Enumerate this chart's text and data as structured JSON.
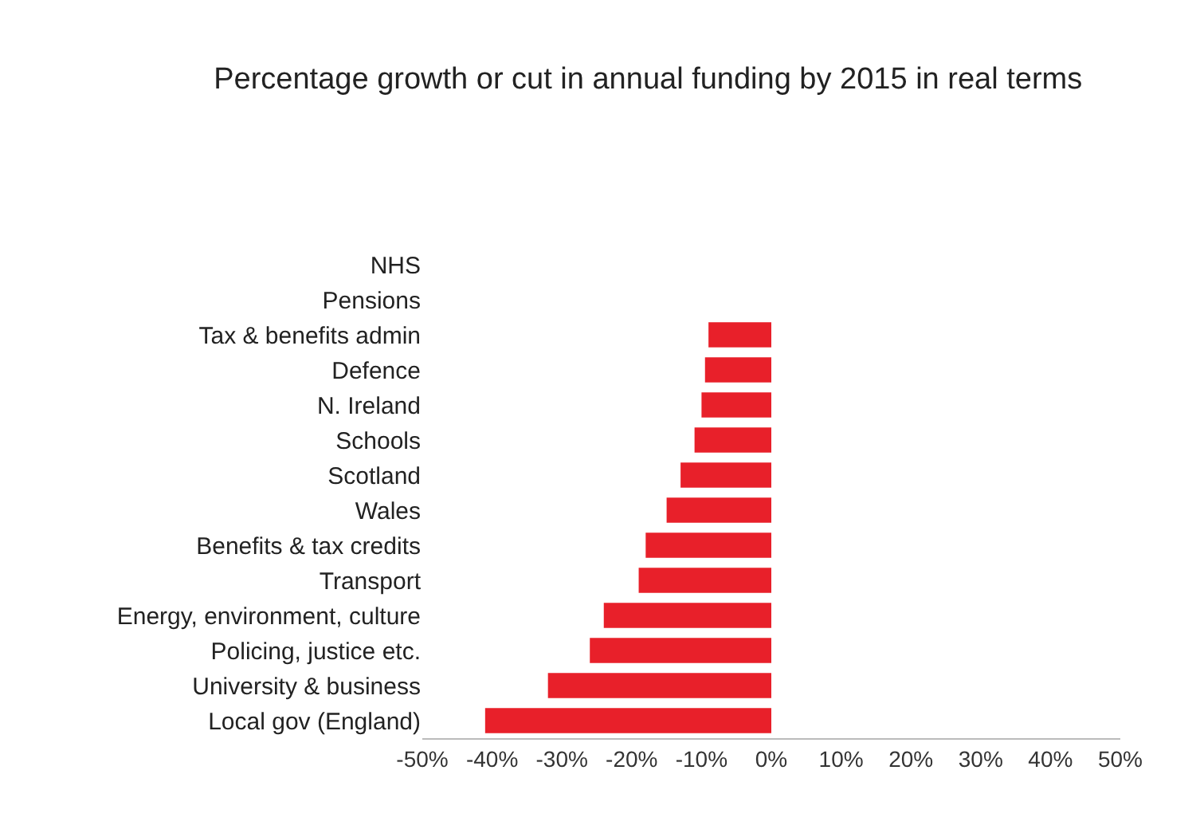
{
  "chart_data": {
    "type": "bar",
    "orientation": "horizontal",
    "title": "Percentage growth or cut in annual funding by 2015 in real terms",
    "categories": [
      "NHS",
      "Pensions",
      "Tax & benefits admin",
      "Defence",
      "N. Ireland",
      "Schools",
      "Scotland",
      "Wales",
      "Benefits & tax credits",
      "Transport",
      "Energy, environment, culture",
      "Policing, justice etc.",
      "University & business",
      "Local gov (England)"
    ],
    "values": [
      0,
      0,
      -9,
      -9.5,
      -10,
      -11,
      -13,
      -15,
      -18,
      -19,
      -24,
      -26,
      -32,
      -41
    ],
    "color": "#e8202a",
    "xlim": [
      -50,
      50
    ],
    "xticks": [
      {
        "value": -50,
        "label": "-50%"
      },
      {
        "value": -40,
        "label": "-40%"
      },
      {
        "value": -30,
        "label": "-30%"
      },
      {
        "value": -20,
        "label": "-20%"
      },
      {
        "value": -10,
        "label": "-10%"
      },
      {
        "value": 0,
        "label": "0%"
      },
      {
        "value": 10,
        "label": "10%"
      },
      {
        "value": 20,
        "label": "20%"
      },
      {
        "value": 30,
        "label": "30%"
      },
      {
        "value": 40,
        "label": "40%"
      },
      {
        "value": 50,
        "label": "50%"
      }
    ],
    "grid": false
  }
}
